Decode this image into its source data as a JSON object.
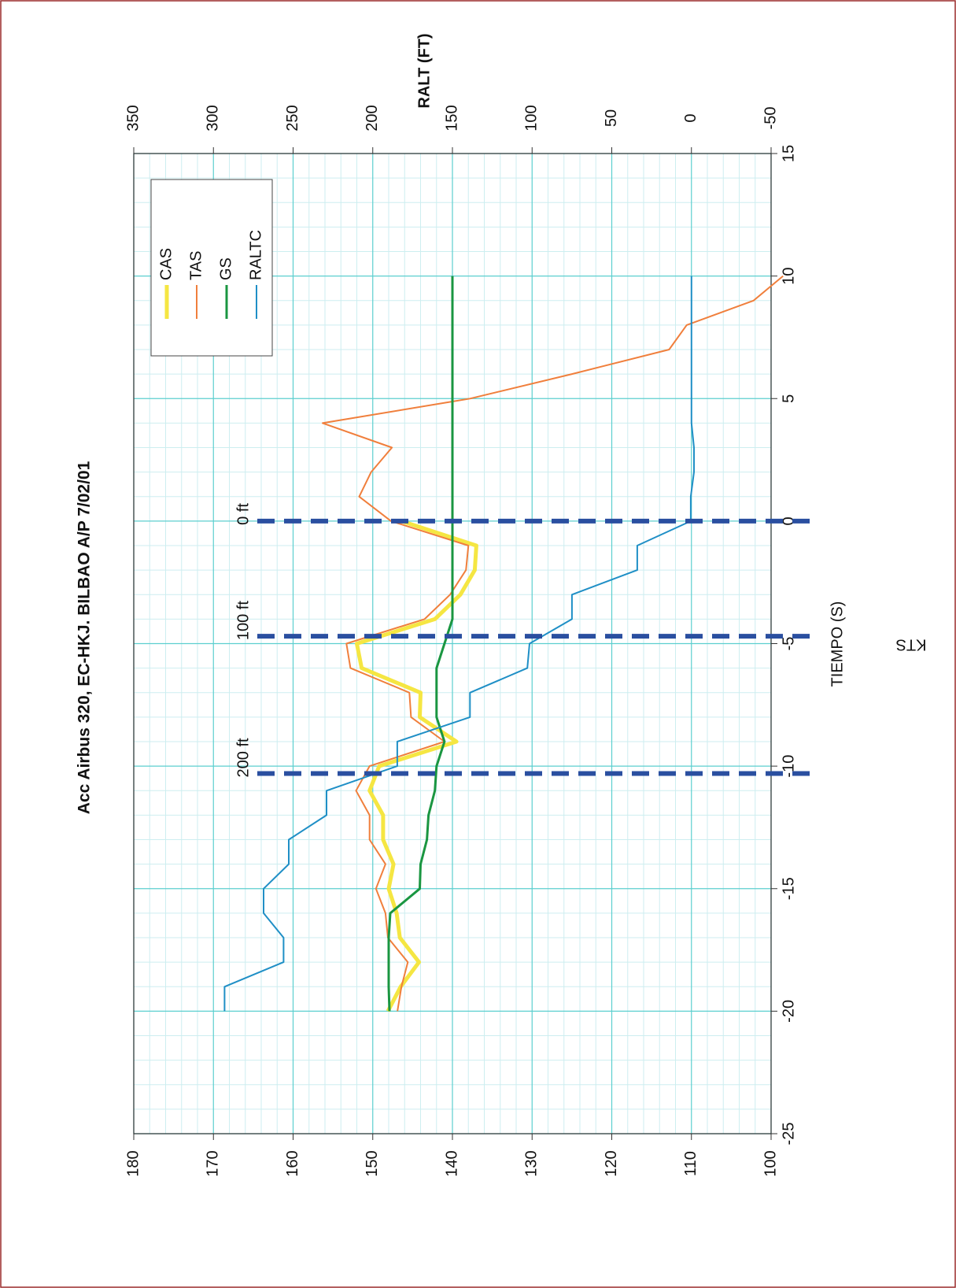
{
  "chart_data": {
    "type": "line",
    "title": "Acc Airbus 320, EC-HKJ.  BILBAO A/P 7/02/01",
    "xlabel": "TIEMPO (S)",
    "ylabel": "KTS",
    "y2label": "RALT (FT)",
    "x": [
      -20,
      -19,
      -18,
      -17,
      -16,
      -15,
      -14,
      -13,
      -12,
      -11,
      -10,
      -9,
      -8,
      -7,
      -6,
      -5,
      -4,
      -3,
      -2,
      -1,
      0,
      1,
      2,
      3,
      4,
      5,
      6,
      7,
      8,
      9,
      10
    ],
    "series": [
      {
        "name": "CAS",
        "color": "#f5e642",
        "values": [
          148.1,
          146.5,
          144.2,
          146.6,
          147,
          148,
          147.4,
          148.7,
          148.7,
          150.4,
          149.2,
          139.5,
          144.1,
          144,
          151.4,
          152,
          142.2,
          139,
          137.2,
          137,
          146.4,
          null,
          null,
          null,
          null,
          null,
          null,
          null,
          null,
          null,
          null
        ]
      },
      {
        "name": "TAS",
        "color": "#f07f3c",
        "values": [
          146.9,
          146.4,
          145.6,
          148.1,
          148.4,
          149.6,
          148.4,
          150.4,
          150.4,
          152.1,
          150.4,
          141,
          145.2,
          145.4,
          152.8,
          153.3,
          143.5,
          140.3,
          138.3,
          138,
          147.7,
          151.7,
          150.2,
          147.6,
          156.3,
          137.8,
          125,
          112.8,
          110.6,
          102.2,
          98.5
        ]
      },
      {
        "name": "GS",
        "color": "#1a9641",
        "values": [
          147.9,
          148,
          148,
          148,
          147.8,
          144.1,
          144,
          143.2,
          143,
          142.2,
          142,
          141,
          142,
          142,
          142,
          141,
          140,
          140,
          140,
          140,
          140,
          140,
          140,
          140,
          140,
          140,
          140,
          140,
          140,
          140,
          140
        ]
      },
      {
        "name": "RALTC",
        "color": "#1f8fc6",
        "axis": "y2",
        "values": [
          293,
          293,
          256,
          256,
          268.5,
          268.5,
          252.7,
          252.7,
          229,
          229,
          184.6,
          184.6,
          139,
          139,
          103,
          101.6,
          75,
          75,
          34,
          34,
          0.4,
          0.4,
          -1.6,
          -1.6,
          0,
          0,
          0,
          0,
          0,
          0,
          0
        ]
      }
    ],
    "xlim": [
      -25,
      15
    ],
    "xticks": [
      -25,
      -20,
      -15,
      -10,
      -5,
      0,
      5,
      10,
      15
    ],
    "ylim": [
      100,
      180
    ],
    "yticks": [
      100,
      110,
      120,
      130,
      140,
      150,
      160,
      170,
      180
    ],
    "y2lim": [
      -50,
      350
    ],
    "y2ticks": [
      -50,
      0,
      50,
      100,
      150,
      200,
      250,
      300,
      350
    ],
    "grid": true,
    "legend": "upper right",
    "annotations": [
      {
        "text": "200 ft",
        "x": -10.3,
        "color": "#2a4fa0"
      },
      {
        "text": "100 ft",
        "x": -4.7,
        "color": "#2a4fa0"
      },
      {
        "text": "0 ft",
        "x": 0,
        "color": "#2a4fa0"
      }
    ]
  }
}
